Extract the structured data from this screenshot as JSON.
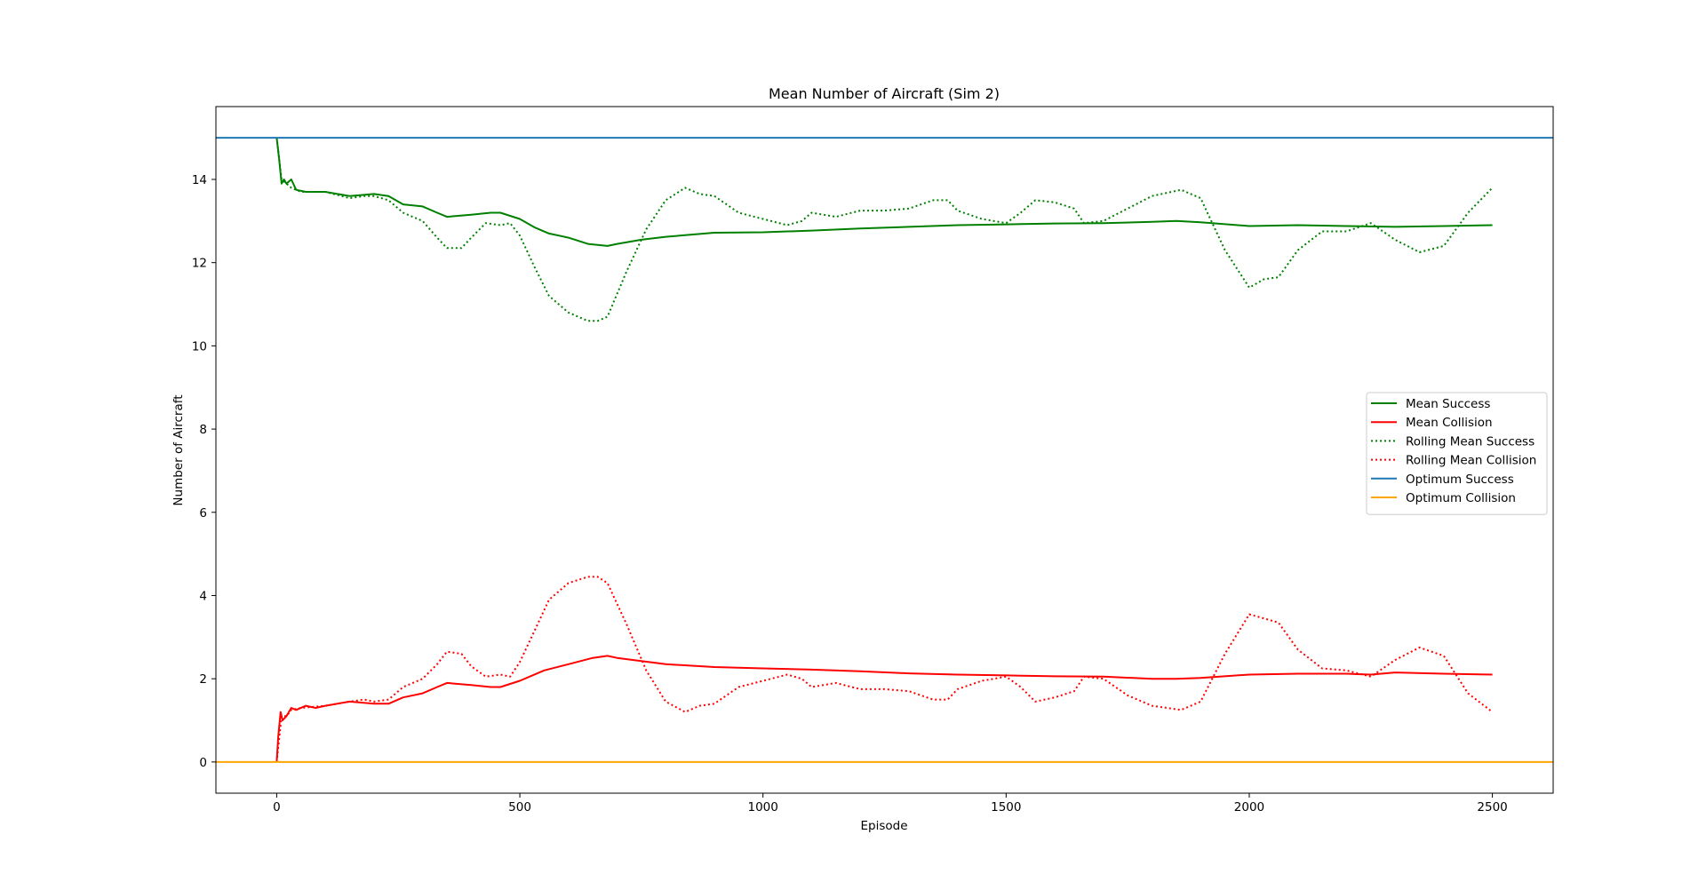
{
  "chart_data": {
    "type": "line",
    "title": "Mean Number of Aircraft (Sim 2)",
    "xlabel": "Episode",
    "ylabel": "Number of Aircraft",
    "xlim": [
      -125,
      2625
    ],
    "ylim": [
      -0.75,
      15.75
    ],
    "xticks": [
      0,
      500,
      1000,
      1500,
      2000,
      2500
    ],
    "yticks": [
      0,
      2,
      4,
      6,
      8,
      10,
      12,
      14
    ],
    "grid": false,
    "legend_position": "center-right",
    "series": [
      {
        "name": "Mean Success",
        "color": "#008000",
        "style": "solid",
        "x": [
          0,
          5,
          10,
          15,
          20,
          30,
          40,
          60,
          80,
          100,
          150,
          200,
          230,
          260,
          300,
          330,
          350,
          400,
          440,
          460,
          500,
          530,
          560,
          600,
          640,
          680,
          700,
          750,
          800,
          900,
          1000,
          1100,
          1200,
          1300,
          1400,
          1500,
          1600,
          1700,
          1800,
          1850,
          1900,
          2000,
          2100,
          2200,
          2300,
          2400,
          2500
        ],
        "values": [
          15.0,
          14.5,
          13.9,
          14.0,
          13.9,
          14.0,
          13.75,
          13.7,
          13.7,
          13.7,
          13.6,
          13.65,
          13.6,
          13.4,
          13.35,
          13.2,
          13.1,
          13.15,
          13.2,
          13.2,
          13.05,
          12.85,
          12.7,
          12.6,
          12.45,
          12.4,
          12.45,
          12.55,
          12.62,
          12.72,
          12.73,
          12.77,
          12.82,
          12.86,
          12.9,
          12.92,
          12.94,
          12.95,
          12.98,
          13.0,
          12.97,
          12.88,
          12.9,
          12.88,
          12.86,
          12.88,
          12.9
        ]
      },
      {
        "name": "Mean Collision",
        "color": "#ff0000",
        "style": "solid",
        "x": [
          0,
          3,
          8,
          12,
          20,
          30,
          40,
          60,
          80,
          100,
          150,
          200,
          230,
          260,
          300,
          330,
          350,
          400,
          440,
          460,
          500,
          550,
          600,
          650,
          680,
          700,
          800,
          900,
          1000,
          1100,
          1200,
          1300,
          1400,
          1500,
          1600,
          1700,
          1800,
          1850,
          1900,
          2000,
          2100,
          2200,
          2250,
          2300,
          2400,
          2500
        ],
        "values": [
          0.0,
          0.6,
          1.2,
          1.0,
          1.1,
          1.3,
          1.25,
          1.35,
          1.3,
          1.35,
          1.45,
          1.4,
          1.4,
          1.55,
          1.65,
          1.8,
          1.9,
          1.85,
          1.8,
          1.8,
          1.95,
          2.2,
          2.35,
          2.5,
          2.55,
          2.5,
          2.35,
          2.28,
          2.25,
          2.22,
          2.18,
          2.13,
          2.1,
          2.08,
          2.06,
          2.05,
          2.0,
          2.0,
          2.02,
          2.1,
          2.12,
          2.12,
          2.1,
          2.15,
          2.12,
          2.1
        ]
      },
      {
        "name": "Rolling Mean Success",
        "color": "#008000",
        "style": "dotted",
        "x": [
          0,
          10,
          20,
          30,
          50,
          100,
          150,
          180,
          200,
          230,
          260,
          300,
          330,
          350,
          380,
          400,
          430,
          460,
          480,
          500,
          530,
          560,
          600,
          640,
          660,
          680,
          720,
          760,
          800,
          840,
          870,
          900,
          950,
          1000,
          1050,
          1080,
          1100,
          1150,
          1200,
          1250,
          1300,
          1350,
          1380,
          1400,
          1450,
          1500,
          1530,
          1560,
          1600,
          1640,
          1660,
          1700,
          1750,
          1800,
          1860,
          1900,
          1950,
          2000,
          2030,
          2060,
          2100,
          2150,
          2200,
          2250,
          2300,
          2350,
          2400,
          2450,
          2500
        ],
        "values": [
          15.0,
          14.0,
          13.9,
          13.8,
          13.7,
          13.7,
          13.55,
          13.6,
          13.6,
          13.5,
          13.2,
          13.0,
          12.6,
          12.35,
          12.35,
          12.6,
          12.95,
          12.9,
          12.95,
          12.65,
          11.9,
          11.2,
          10.8,
          10.6,
          10.6,
          10.7,
          11.8,
          12.8,
          13.5,
          13.8,
          13.65,
          13.6,
          13.2,
          13.05,
          12.9,
          13.0,
          13.2,
          13.1,
          13.25,
          13.25,
          13.3,
          13.5,
          13.5,
          13.25,
          13.05,
          12.95,
          13.2,
          13.5,
          13.45,
          13.3,
          12.95,
          13.0,
          13.3,
          13.6,
          13.75,
          13.55,
          12.3,
          11.4,
          11.6,
          11.65,
          12.3,
          12.75,
          12.75,
          12.95,
          12.55,
          12.25,
          12.4,
          13.2,
          13.8
        ]
      },
      {
        "name": "Rolling Mean Collision",
        "color": "#ff0000",
        "style": "dotted",
        "x": [
          0,
          10,
          20,
          30,
          50,
          100,
          150,
          180,
          200,
          230,
          260,
          300,
          330,
          350,
          380,
          400,
          430,
          460,
          480,
          500,
          530,
          560,
          600,
          640,
          660,
          680,
          720,
          760,
          800,
          840,
          870,
          900,
          950,
          1000,
          1050,
          1080,
          1100,
          1150,
          1200,
          1250,
          1300,
          1350,
          1380,
          1400,
          1450,
          1500,
          1530,
          1560,
          1600,
          1640,
          1660,
          1700,
          1750,
          1800,
          1860,
          1900,
          1950,
          2000,
          2030,
          2060,
          2100,
          2150,
          2200,
          2250,
          2300,
          2350,
          2400,
          2450,
          2500
        ],
        "values": [
          0.0,
          1.1,
          1.1,
          1.25,
          1.3,
          1.35,
          1.45,
          1.5,
          1.45,
          1.5,
          1.8,
          2.0,
          2.35,
          2.65,
          2.6,
          2.3,
          2.05,
          2.1,
          2.05,
          2.4,
          3.15,
          3.9,
          4.3,
          4.45,
          4.45,
          4.3,
          3.3,
          2.2,
          1.45,
          1.2,
          1.35,
          1.4,
          1.8,
          1.95,
          2.1,
          2.0,
          1.8,
          1.9,
          1.75,
          1.75,
          1.7,
          1.5,
          1.5,
          1.75,
          1.95,
          2.05,
          1.8,
          1.45,
          1.55,
          1.7,
          2.05,
          2.0,
          1.6,
          1.35,
          1.25,
          1.45,
          2.6,
          3.55,
          3.45,
          3.35,
          2.7,
          2.25,
          2.2,
          2.05,
          2.45,
          2.75,
          2.55,
          1.65,
          1.2
        ]
      },
      {
        "name": "Optimum Success",
        "color": "#1f77b4",
        "style": "solid",
        "x": [
          -125,
          2625
        ],
        "values": [
          15.0,
          15.0
        ]
      },
      {
        "name": "Optimum Collision",
        "color": "#ffa500",
        "style": "solid",
        "x": [
          -125,
          2625
        ],
        "values": [
          0.0,
          0.0
        ]
      }
    ]
  }
}
